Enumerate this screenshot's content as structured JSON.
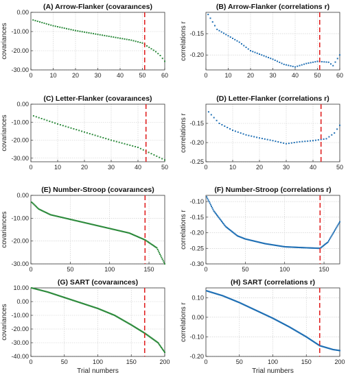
{
  "figure": {
    "xlabel": "Trial numbers"
  },
  "chart_data": [
    {
      "id": "A",
      "type": "scatter",
      "title": "(A) Arrow-Flanker (covaraınces)",
      "ylabel": "covariances",
      "ylabel_suffix": "",
      "xlim": [
        0,
        60
      ],
      "ylim": [
        -30,
        0
      ],
      "xticks": [
        0,
        10,
        20,
        30,
        40,
        50,
        60
      ],
      "yticks": [
        0,
        -10,
        -20,
        -30
      ],
      "ytick_labels": [
        "0.00",
        "-10.00",
        "-20.00",
        "-30.00"
      ],
      "cutoff": 51,
      "n": 60,
      "color": "#2e8b3d",
      "x": [
        1,
        10,
        20,
        30,
        40,
        45,
        50,
        52,
        54,
        56,
        58,
        60
      ],
      "y": [
        -4,
        -7,
        -9.5,
        -11.5,
        -13.5,
        -14.5,
        -16,
        -17.5,
        -19,
        -20.5,
        -22.5,
        -25.5
      ],
      "xlabel": ""
    },
    {
      "id": "B",
      "type": "scatter",
      "title": "(B) Arrow-Flanker (correlations r)",
      "ylabel": "correlations",
      "ylabel_suffix": "r",
      "xlim": [
        0,
        60
      ],
      "ylim": [
        -0.235,
        -0.1
      ],
      "xticks": [
        0,
        10,
        20,
        30,
        40,
        50,
        60
      ],
      "yticks": [
        -0.15,
        -0.2
      ],
      "ytick_labels": [
        "-0.15",
        "-0.20"
      ],
      "cutoff": 51,
      "n": 60,
      "color": "#1f6fb4",
      "x": [
        1,
        5,
        10,
        15,
        20,
        25,
        30,
        35,
        40,
        45,
        50,
        55,
        57,
        60
      ],
      "y": [
        -0.105,
        -0.14,
        -0.155,
        -0.17,
        -0.19,
        -0.2,
        -0.21,
        -0.222,
        -0.228,
        -0.22,
        -0.215,
        -0.217,
        -0.225,
        -0.2
      ],
      "xlabel": ""
    },
    {
      "id": "C",
      "type": "scatter",
      "title": "(C) Letter-Flanker (covaraınces)",
      "ylabel": "covariances",
      "ylabel_suffix": "",
      "xlim": [
        0,
        50
      ],
      "ylim": [
        -32,
        0
      ],
      "xticks": [
        0,
        10,
        20,
        30,
        40,
        50
      ],
      "yticks": [
        0,
        -10,
        -20,
        -30
      ],
      "ytick_labels": [
        "0.00",
        "-10.00",
        "-20.00",
        "-30.00"
      ],
      "cutoff": 43,
      "n": 50,
      "color": "#2e8b3d",
      "x": [
        1,
        10,
        20,
        30,
        40,
        45,
        50
      ],
      "y": [
        -6.5,
        -11,
        -15.5,
        -20,
        -24,
        -27.5,
        -31
      ],
      "xlabel": ""
    },
    {
      "id": "D",
      "type": "scatter",
      "title": "(D) Letter-Flanker (correlations r)",
      "ylabel": "correlations",
      "ylabel_suffix": "r",
      "xlim": [
        0,
        50
      ],
      "ylim": [
        -0.25,
        -0.1
      ],
      "xticks": [
        0,
        10,
        20,
        30,
        40,
        50
      ],
      "yticks": [
        -0.15,
        -0.2,
        -0.25
      ],
      "ytick_labels": [
        "-0.15",
        "-0.20",
        "-0.25"
      ],
      "cutoff": 43,
      "n": 50,
      "color": "#1f6fb4",
      "x": [
        1,
        5,
        10,
        15,
        20,
        25,
        30,
        35,
        40,
        45,
        48,
        50
      ],
      "y": [
        -0.12,
        -0.15,
        -0.168,
        -0.18,
        -0.188,
        -0.195,
        -0.203,
        -0.198,
        -0.195,
        -0.19,
        -0.175,
        -0.155
      ],
      "xlabel": ""
    },
    {
      "id": "E",
      "type": "scatter",
      "title": "(E) Number-Stroop (covaraınces)",
      "ylabel": "covariances",
      "ylabel_suffix": "",
      "xlim": [
        0,
        170
      ],
      "ylim": [
        -30,
        0
      ],
      "xticks": [
        0,
        50,
        100,
        150
      ],
      "yticks": [
        0,
        -10,
        -20,
        -30
      ],
      "ytick_labels": [
        "0.00",
        "-10.00",
        "-20.00",
        "-30.00"
      ],
      "cutoff": 145,
      "n": 170,
      "color": "#2e8b3d",
      "x": [
        1,
        10,
        25,
        50,
        75,
        100,
        125,
        145,
        160,
        170
      ],
      "y": [
        -3,
        -6,
        -8.5,
        -10.5,
        -12.5,
        -14.5,
        -16.5,
        -19.5,
        -23,
        -30
      ],
      "xlabel": ""
    },
    {
      "id": "F",
      "type": "scatter",
      "title": "(F) Number-Stroop (correlations r)",
      "ylabel": "correlations",
      "ylabel_suffix": "r",
      "xlim": [
        0,
        170
      ],
      "ylim": [
        -0.3,
        -0.08
      ],
      "xticks": [
        0,
        50,
        100,
        150
      ],
      "yticks": [
        -0.1,
        -0.15,
        -0.2,
        -0.25,
        -0.3
      ],
      "ytick_labels": [
        "-0.10",
        "-0.15",
        "-0.20",
        "-0.25",
        "-0.30"
      ],
      "cutoff": 145,
      "n": 170,
      "color": "#1f6fb4",
      "x": [
        1,
        10,
        25,
        40,
        50,
        75,
        100,
        125,
        145,
        155,
        162,
        170
      ],
      "y": [
        -0.085,
        -0.13,
        -0.18,
        -0.21,
        -0.22,
        -0.235,
        -0.245,
        -0.248,
        -0.25,
        -0.23,
        -0.2,
        -0.165
      ],
      "xlabel": ""
    },
    {
      "id": "G",
      "type": "scatter",
      "title": "(G) SART (covaraınces)",
      "ylabel": "covariances",
      "ylabel_suffix": "",
      "xlim": [
        0,
        200
      ],
      "ylim": [
        -40,
        10
      ],
      "xticks": [
        0,
        50,
        100,
        150,
        200
      ],
      "yticks": [
        10,
        0,
        -10,
        -20,
        -30,
        -40
      ],
      "ytick_labels": [
        "10.00",
        "0.00",
        "-10.00",
        "-20.00",
        "-30.00",
        "-40.00"
      ],
      "cutoff": 170,
      "n": 200,
      "color": "#2e8b3d",
      "x": [
        1,
        25,
        50,
        75,
        100,
        125,
        150,
        170,
        190,
        200
      ],
      "y": [
        10,
        7,
        3,
        -1,
        -5,
        -10,
        -17,
        -23,
        -30,
        -37
      ],
      "xlabel": "Trial numbers"
    },
    {
      "id": "H",
      "type": "scatter",
      "title": "(H) SART (correlations r)",
      "ylabel": "correlations",
      "ylabel_suffix": "r",
      "xlim": [
        0,
        200
      ],
      "ylim": [
        -0.2,
        0.15
      ],
      "xticks": [
        0,
        50,
        100,
        150,
        200
      ],
      "yticks": [
        0.1,
        0,
        -0.1,
        -0.2
      ],
      "ytick_labels": [
        "0.10",
        "0.00",
        "-0.10",
        "-0.20"
      ],
      "cutoff": 170,
      "n": 200,
      "color": "#1f6fb4",
      "x": [
        1,
        25,
        50,
        75,
        100,
        125,
        150,
        170,
        190,
        200
      ],
      "y": [
        0.135,
        0.11,
        0.075,
        0.035,
        -0.005,
        -0.05,
        -0.1,
        -0.145,
        -0.165,
        -0.17
      ],
      "xlabel": "Trial numbers"
    }
  ]
}
